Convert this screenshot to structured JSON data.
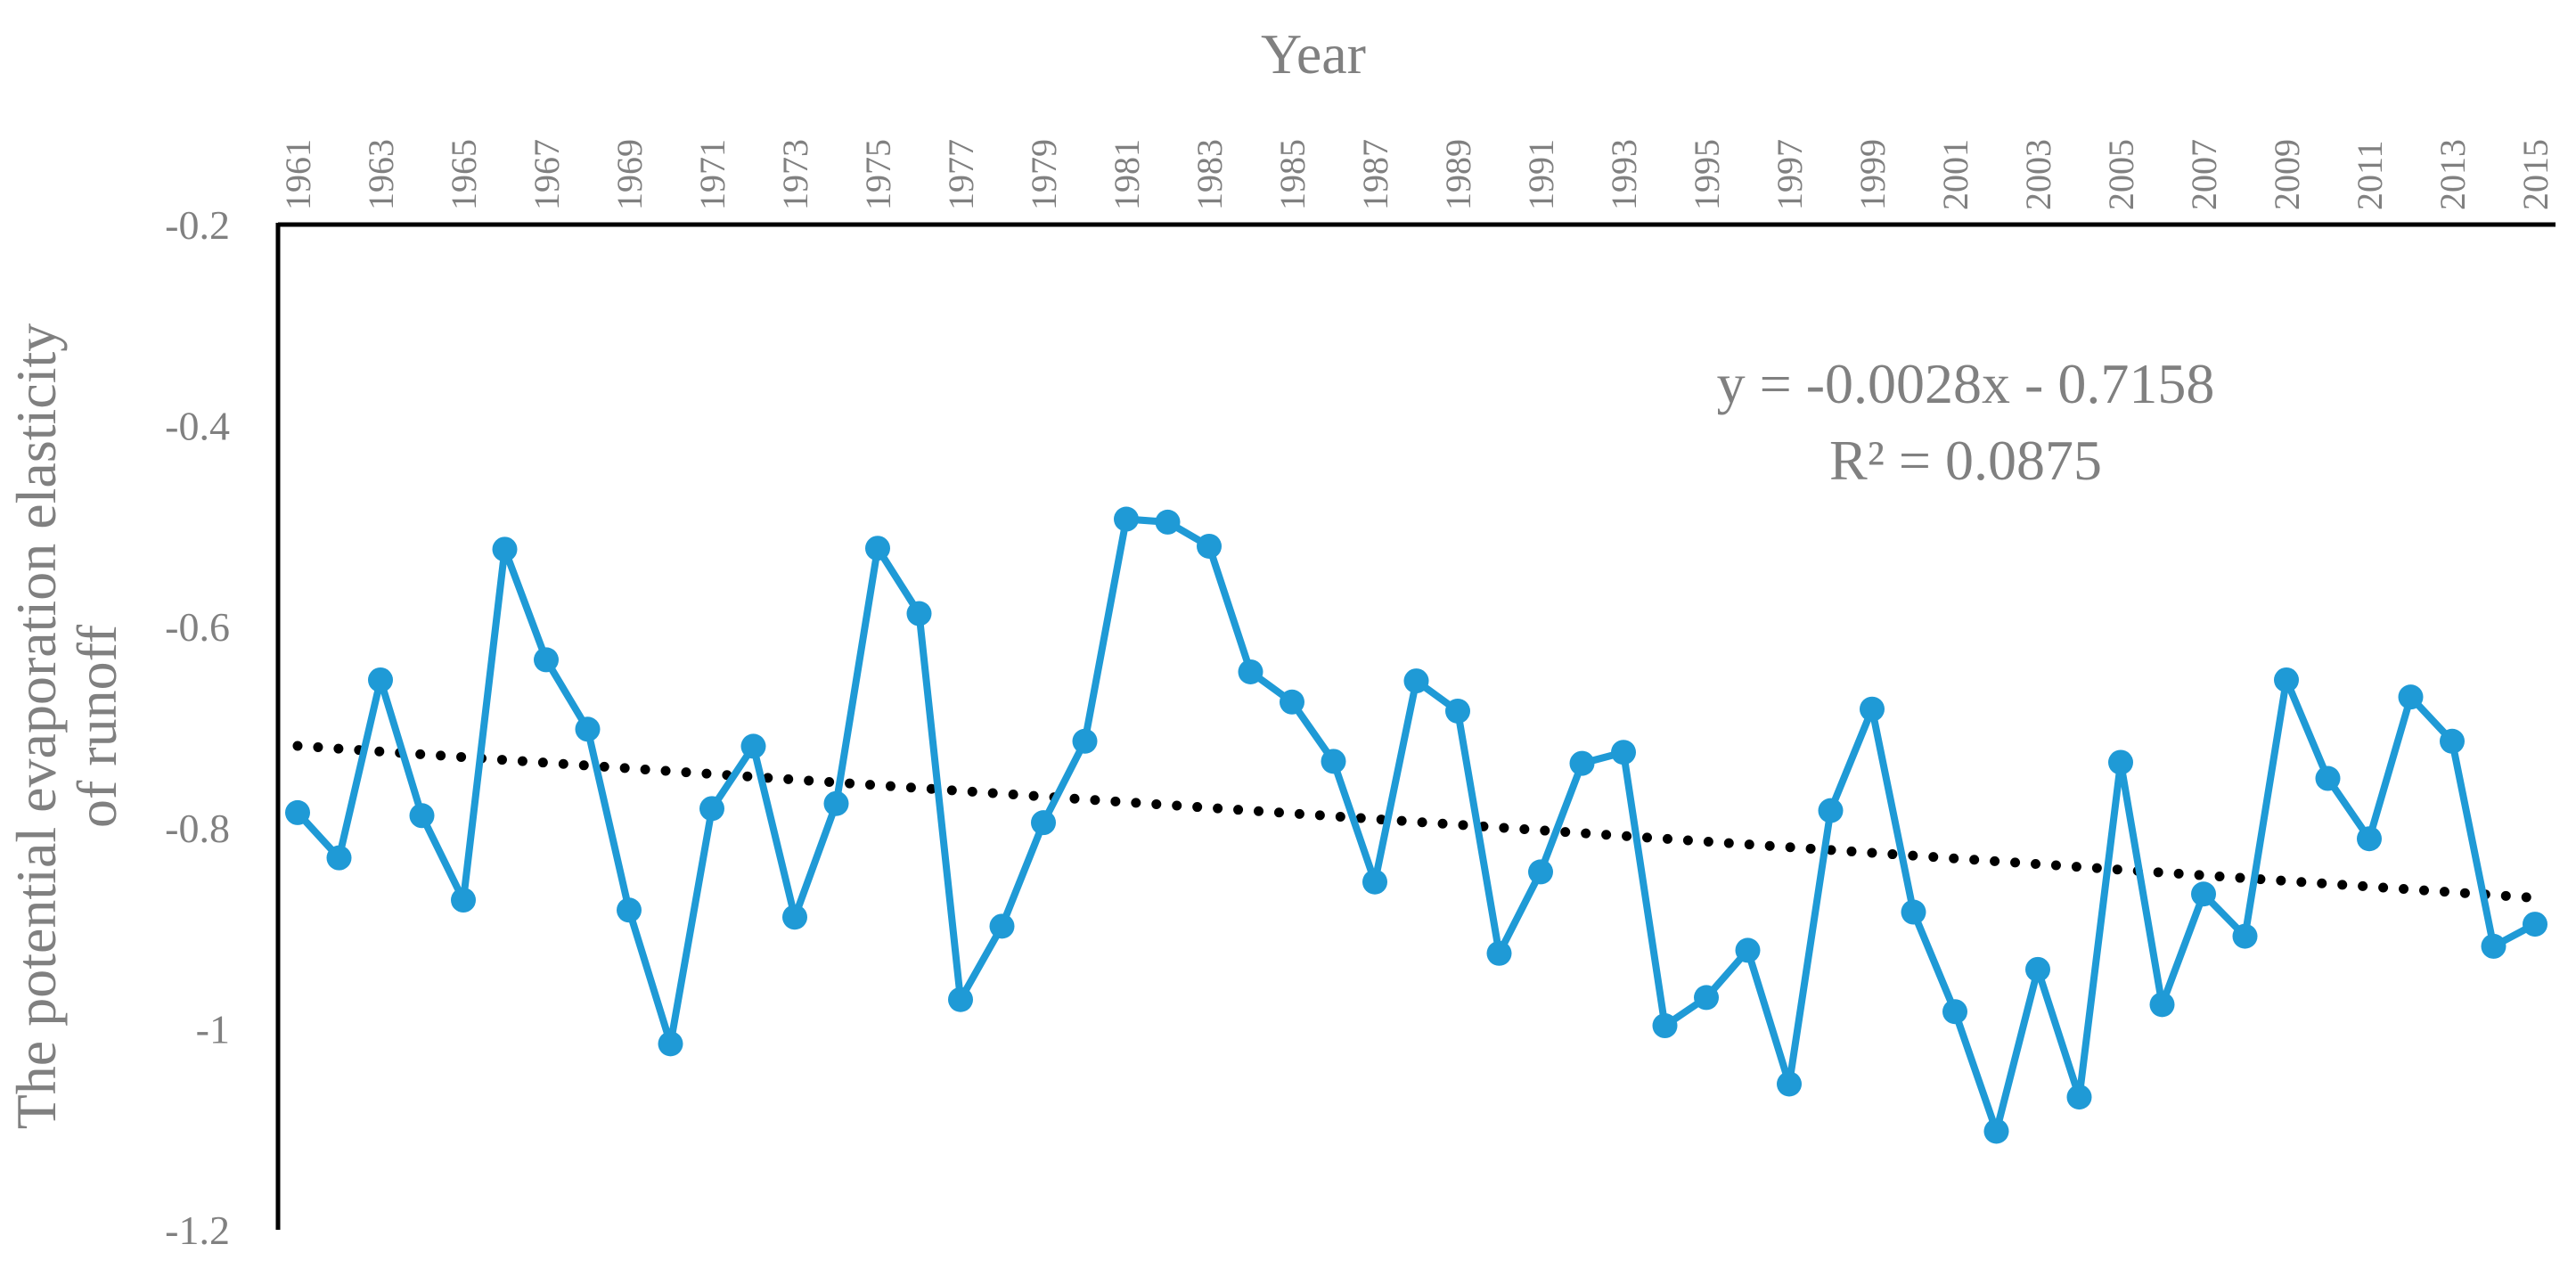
{
  "chart_data": {
    "type": "line",
    "xlabel": "Year",
    "ylabel_lines": [
      "The potential evaporation elasticity",
      "of runoff"
    ],
    "x": [
      1961,
      1962,
      1963,
      1964,
      1965,
      1966,
      1967,
      1968,
      1969,
      1970,
      1971,
      1972,
      1973,
      1974,
      1975,
      1976,
      1977,
      1978,
      1979,
      1980,
      1981,
      1982,
      1983,
      1984,
      1985,
      1986,
      1987,
      1988,
      1989,
      1990,
      1991,
      1992,
      1993,
      1994,
      1995,
      1996,
      1997,
      1998,
      1999,
      2000,
      2001,
      2002,
      2003,
      2004,
      2005,
      2006,
      2007,
      2008,
      2009,
      2010,
      2011,
      2012,
      2013,
      2014,
      2015
    ],
    "x_tick_labels": [
      "1961",
      "1963",
      "1965",
      "1967",
      "1969",
      "1971",
      "1973",
      "1975",
      "1977",
      "1979",
      "1981",
      "1983",
      "1985",
      "1987",
      "1989",
      "1991",
      "1993",
      "1995",
      "1997",
      "1999",
      "2001",
      "2003",
      "2005",
      "2007",
      "2009",
      "2011",
      "2013",
      "2015"
    ],
    "y_ticks": [
      -0.2,
      -0.4,
      -0.6,
      -0.8,
      -1.0,
      -1.2
    ],
    "y_tick_labels": [
      "-0.2",
      "-0.4",
      "-0.6",
      "-0.8",
      "-1",
      "-1.2"
    ],
    "ylim": [
      -1.2,
      -0.2
    ],
    "x_axis_position": "top",
    "grid": false,
    "legend": "none",
    "series": [
      {
        "color": "#1f9ad6",
        "marker": "circle",
        "values": [
          -0.785,
          -0.83,
          -0.653,
          -0.788,
          -0.872,
          -0.523,
          -0.633,
          -0.702,
          -0.882,
          -1.015,
          -0.781,
          -0.719,
          -0.889,
          -0.776,
          -0.522,
          -0.587,
          -0.971,
          -0.898,
          -0.795,
          -0.714,
          -0.493,
          -0.496,
          -0.52,
          -0.645,
          -0.675,
          -0.734,
          -0.854,
          -0.654,
          -0.684,
          -0.925,
          -0.844,
          -0.736,
          -0.725,
          -0.997,
          -0.969,
          -0.922,
          -1.055,
          -0.783,
          -0.682,
          -0.884,
          -0.983,
          -1.102,
          -0.941,
          -1.068,
          -0.735,
          -0.976,
          -0.866,
          -0.908,
          -0.653,
          -0.751,
          -0.811,
          -0.67,
          -0.714,
          -0.918,
          -0.896
        ]
      }
    ],
    "trendline": {
      "style": "dotted",
      "color": "#000000",
      "slope": -0.0028,
      "intercept": -0.7158,
      "x_index_start": 1
    },
    "annotations": {
      "equation": "y = -0.0028x - 0.7158",
      "r_squared": "R² = 0.0875"
    }
  }
}
